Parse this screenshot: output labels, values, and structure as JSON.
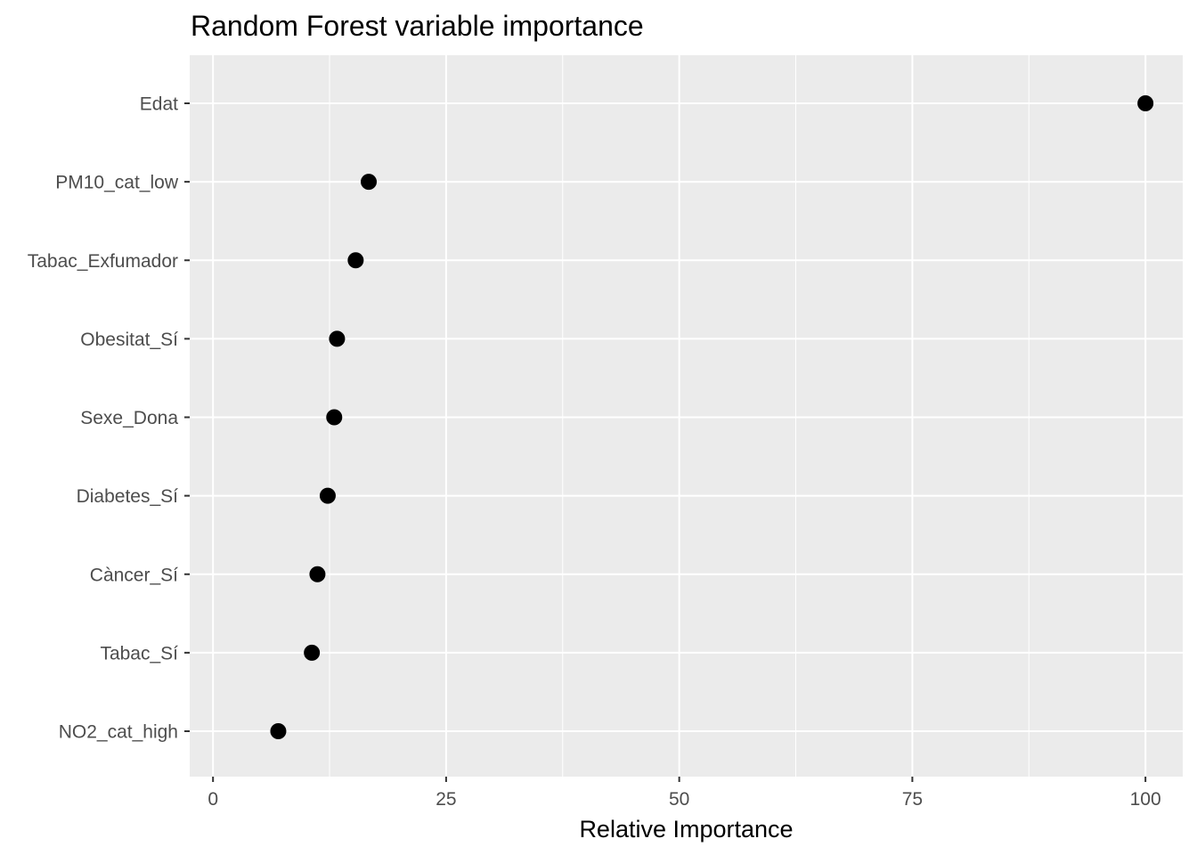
{
  "chart_data": {
    "type": "scatter",
    "title": "Random Forest variable importance",
    "xlabel": "Relative Importance",
    "ylabel": "",
    "xlim": [
      -2.5,
      104
    ],
    "x_ticks": [
      0,
      25,
      50,
      75,
      100
    ],
    "x_tick_labels": [
      "0",
      "25",
      "50",
      "75",
      "100"
    ],
    "grid": true,
    "legend": "none",
    "colors": {
      "panel": "#ebebeb",
      "grid": "#ffffff",
      "point": "#000000",
      "tick": "#4d4d4d"
    },
    "categories": [
      "Edat",
      "PM10_cat_low",
      "Tabac_Exfumador",
      "Obesitat_Sí",
      "Sexe_Dona",
      "Diabetes_Sí",
      "Càncer_Sí",
      "Tabac_Sí",
      "NO2_cat_high"
    ],
    "values": [
      100,
      16.7,
      15.3,
      13.3,
      13.0,
      12.3,
      11.2,
      10.6,
      7.0
    ]
  }
}
